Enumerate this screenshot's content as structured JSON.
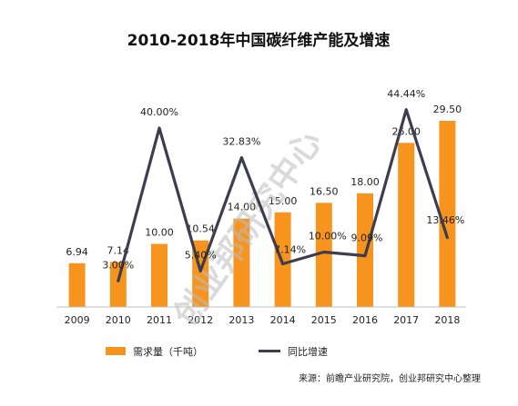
{
  "chart_data": {
    "type": "bar",
    "title": "2010-2018年中国碳纤维产能及增速",
    "categories": [
      "2009",
      "2010",
      "2011",
      "2012",
      "2013",
      "2014",
      "2015",
      "2016",
      "2017",
      "2018"
    ],
    "series": [
      {
        "name": "需求量（千吨）",
        "type": "bar",
        "color": "#F7941D",
        "values": [
          6.94,
          7.14,
          10.0,
          10.54,
          14.0,
          15.0,
          16.5,
          18.0,
          26.0,
          29.5
        ],
        "labels": [
          "6.94",
          "7.14",
          "10.00",
          "10.54",
          "14.00",
          "15.00",
          "16.50",
          "18.00",
          "26.00",
          "29.50"
        ]
      },
      {
        "name": "同比增速",
        "type": "line",
        "color": "#3D3D4F",
        "values": [
          null,
          3.0,
          40.0,
          5.4,
          32.83,
          7.14,
          10.0,
          9.09,
          44.44,
          13.46
        ],
        "labels": [
          "",
          "3.00%",
          "40.00%",
          "5.40%",
          "32.83%",
          "7.14%",
          "10.00%",
          "9.09%",
          "44.44%",
          "13.46%"
        ]
      }
    ],
    "grid": false,
    "legend_position": "bottom-left"
  },
  "source_note": "来源：前瞻产业研究院，创业邦研究中心整理",
  "watermark": "创业邦研究中心"
}
